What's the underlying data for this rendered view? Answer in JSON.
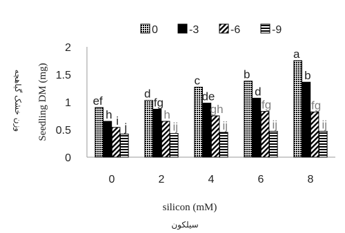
{
  "chart_data": {
    "type": "bar",
    "categories": [
      "0",
      "2",
      "4",
      "6",
      "8"
    ],
    "xlabel": "silicon (mM)",
    "xlabel_fa": "سیلکون",
    "ylabel": "Seedling DM (mg)",
    "ylabel_fa": "وزن خشک گیاهچه",
    "ylim": [
      0,
      2
    ],
    "yticks": [
      "0",
      "0.5",
      "1",
      "1.5",
      "2"
    ],
    "grid": false,
    "legend_position": "top",
    "series": [
      {
        "name": "0",
        "pattern": "dotted",
        "values": [
          0.9,
          1.03,
          1.27,
          1.38,
          1.75
        ],
        "labels": [
          "ef",
          "d",
          "c",
          "b",
          "a"
        ]
      },
      {
        "name": "-3",
        "pattern": "solid",
        "values": [
          0.65,
          0.87,
          0.98,
          1.07,
          1.36
        ],
        "labels": [
          "h",
          "fg",
          "de",
          "d",
          "b"
        ]
      },
      {
        "name": "-6",
        "pattern": "diagonal",
        "values": [
          0.54,
          0.65,
          0.75,
          0.83,
          0.82
        ],
        "labels": [
          "i",
          "h",
          "gh",
          "fg",
          "fg"
        ]
      },
      {
        "name": "-9",
        "pattern": "horizontal",
        "values": [
          0.42,
          0.43,
          0.45,
          0.47,
          0.47
        ],
        "labels": [
          "j",
          "ij",
          "ij",
          "ij",
          "ij"
        ]
      }
    ],
    "colors": {
      "ink": "#000000",
      "label_dark": "#222222",
      "label_gray": "#7f7f7f",
      "axis": "#999999"
    }
  }
}
